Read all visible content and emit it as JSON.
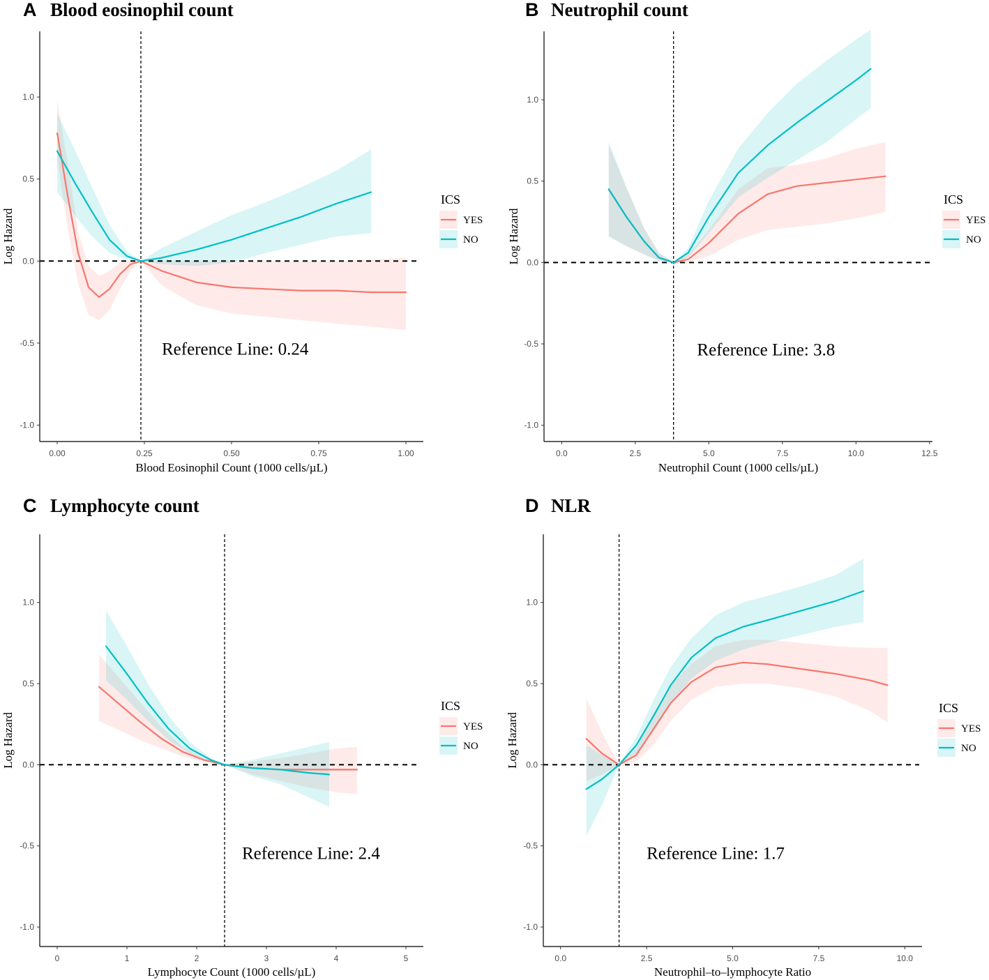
{
  "colors": {
    "yes": "#F8766D",
    "no": "#00BFC4",
    "yes_band": "#F8766D",
    "no_band": "#00BFC4",
    "axis": "#000000",
    "tick_text": "#4d4d4d"
  },
  "chart_data": [
    {
      "type": "line",
      "panel_letter": "A",
      "title": "Blood eosinophil count",
      "xlabel": "Blood Eosinophil Count (1000 cells/µL)",
      "ylabel": "Log Hazard",
      "xlim": [
        -0.05,
        1.05
      ],
      "ylim": [
        -1.1,
        1.4
      ],
      "xticks": [
        0.0,
        0.25,
        0.5,
        0.75,
        1.0
      ],
      "xtick_labels": [
        "0.00",
        "0.25",
        "0.50",
        "0.75",
        "1.00"
      ],
      "yticks": [
        1.0,
        0.5,
        0.0,
        -0.5,
        -1.0
      ],
      "ytick_labels": [
        "1.0",
        "0.5",
        "0.0",
        "-0.5",
        "-1.0"
      ],
      "reference_value": 0.24,
      "reference_label": "Reference Line: 0.24",
      "reference_label_pos": [
        0.3,
        -0.57
      ],
      "legend": {
        "title": "ICS",
        "position": "right",
        "entries": [
          "YES",
          "NO"
        ]
      },
      "series": [
        {
          "name": "YES",
          "x": [
            0.0,
            0.03,
            0.06,
            0.09,
            0.12,
            0.15,
            0.18,
            0.21,
            0.24,
            0.3,
            0.4,
            0.5,
            0.6,
            0.7,
            0.8,
            0.9,
            1.0
          ],
          "y": [
            0.78,
            0.4,
            0.05,
            -0.16,
            -0.22,
            -0.17,
            -0.08,
            -0.02,
            0.0,
            -0.06,
            -0.13,
            -0.16,
            -0.17,
            -0.18,
            -0.18,
            -0.19,
            -0.19
          ],
          "lower": [
            0.62,
            0.2,
            -0.14,
            -0.33,
            -0.36,
            -0.3,
            -0.17,
            -0.06,
            0.0,
            -0.15,
            -0.27,
            -0.32,
            -0.34,
            -0.36,
            -0.38,
            -0.4,
            -0.42
          ],
          "upper": [
            0.98,
            0.6,
            0.18,
            -0.03,
            -0.09,
            -0.06,
            -0.01,
            0.0,
            0.0,
            0.0,
            0.0,
            0.0,
            0.0,
            0.0,
            0.0,
            0.01,
            0.02
          ]
        },
        {
          "name": "NO",
          "x": [
            0.0,
            0.05,
            0.1,
            0.15,
            0.2,
            0.24,
            0.3,
            0.4,
            0.5,
            0.6,
            0.7,
            0.8,
            0.9
          ],
          "y": [
            0.67,
            0.48,
            0.3,
            0.13,
            0.03,
            0.0,
            0.02,
            0.07,
            0.13,
            0.2,
            0.27,
            0.35,
            0.42
          ],
          "lower": [
            0.42,
            0.28,
            0.15,
            0.05,
            0.01,
            0.0,
            -0.02,
            -0.03,
            -0.01,
            0.05,
            0.1,
            0.15,
            0.17
          ],
          "upper": [
            0.9,
            0.68,
            0.45,
            0.22,
            0.06,
            0.0,
            0.08,
            0.18,
            0.28,
            0.36,
            0.45,
            0.55,
            0.68
          ]
        }
      ]
    },
    {
      "type": "line",
      "panel_letter": "B",
      "title": "Neutrophil count",
      "xlabel": "Neutrophil Count (1000 cells/µL)",
      "ylabel": "Log Hazard",
      "xlim": [
        -0.6,
        12.6
      ],
      "ylim": [
        -1.1,
        1.42
      ],
      "xticks": [
        0.0,
        2.5,
        5.0,
        7.5,
        10.0,
        12.5
      ],
      "xtick_labels": [
        "0.0",
        "2.5",
        "5.0",
        "7.5",
        "10.0",
        "12.5"
      ],
      "yticks": [
        1.0,
        0.5,
        0.0,
        -0.5,
        -1.0
      ],
      "ytick_labels": [
        "1.0",
        "0.5",
        "0.0",
        "-0.5",
        "-1.0"
      ],
      "reference_value": 3.8,
      "reference_label": "Reference Line: 3.8",
      "reference_label_pos": [
        4.6,
        -0.57
      ],
      "legend": {
        "title": "ICS",
        "position": "right",
        "entries": [
          "YES",
          "NO"
        ]
      },
      "series": [
        {
          "name": "YES",
          "x": [
            1.6,
            2.2,
            2.8,
            3.3,
            3.8,
            4.3,
            5.0,
            6.0,
            7.0,
            8.0,
            9.0,
            10.0,
            11.0
          ],
          "y": [
            0.45,
            0.28,
            0.13,
            0.03,
            0.0,
            0.02,
            0.12,
            0.3,
            0.42,
            0.47,
            0.49,
            0.51,
            0.53
          ],
          "lower": [
            0.16,
            0.1,
            0.05,
            0.01,
            0.0,
            0.0,
            0.04,
            0.14,
            0.2,
            0.22,
            0.24,
            0.27,
            0.31
          ],
          "upper": [
            0.72,
            0.46,
            0.21,
            0.06,
            0.0,
            0.05,
            0.2,
            0.45,
            0.58,
            0.6,
            0.64,
            0.7,
            0.74
          ]
        },
        {
          "name": "NO",
          "x": [
            1.6,
            2.2,
            2.8,
            3.3,
            3.8,
            4.3,
            5.0,
            6.0,
            7.0,
            8.0,
            9.0,
            10.0,
            10.5
          ],
          "y": [
            0.45,
            0.28,
            0.13,
            0.03,
            0.0,
            0.06,
            0.28,
            0.55,
            0.72,
            0.86,
            0.99,
            1.12,
            1.19
          ],
          "lower": [
            0.16,
            0.1,
            0.05,
            0.01,
            0.0,
            0.03,
            0.18,
            0.4,
            0.52,
            0.63,
            0.74,
            0.88,
            0.95
          ],
          "upper": [
            0.74,
            0.46,
            0.21,
            0.06,
            0.0,
            0.09,
            0.38,
            0.7,
            0.92,
            1.1,
            1.24,
            1.37,
            1.43
          ]
        }
      ]
    },
    {
      "type": "line",
      "panel_letter": "C",
      "title": "Lymphocyte count",
      "xlabel": "Lymphocyte Count (1000 cells/µL)",
      "ylabel": "Log Hazard",
      "xlim": [
        -0.25,
        5.25
      ],
      "ylim": [
        -1.12,
        1.42
      ],
      "xticks": [
        0,
        1,
        2,
        3,
        4,
        5
      ],
      "xtick_labels": [
        "0",
        "1",
        "2",
        "3",
        "4",
        "5"
      ],
      "yticks": [
        1.0,
        0.5,
        0.0,
        -0.5,
        -1.0
      ],
      "ytick_labels": [
        "1.0",
        "0.5",
        "0.0",
        "-0.5",
        "-1.0"
      ],
      "reference_value": 2.4,
      "reference_label": "Reference Line: 2.4",
      "reference_label_pos": [
        2.65,
        -0.58
      ],
      "legend": {
        "title": "ICS",
        "position": "right",
        "entries": [
          "YES",
          "NO"
        ]
      },
      "series": [
        {
          "name": "YES",
          "x": [
            0.6,
            0.9,
            1.2,
            1.5,
            1.8,
            2.1,
            2.4,
            2.8,
            3.2,
            3.6,
            4.0,
            4.3
          ],
          "y": [
            0.48,
            0.37,
            0.26,
            0.16,
            0.08,
            0.03,
            0.0,
            -0.02,
            -0.03,
            -0.03,
            -0.03,
            -0.03
          ],
          "lower": [
            0.27,
            0.21,
            0.15,
            0.1,
            0.05,
            0.02,
            0.0,
            -0.06,
            -0.1,
            -0.14,
            -0.17,
            -0.18
          ],
          "upper": [
            0.68,
            0.53,
            0.38,
            0.23,
            0.11,
            0.04,
            0.0,
            0.02,
            0.04,
            0.07,
            0.1,
            0.11
          ]
        },
        {
          "name": "NO",
          "x": [
            0.7,
            1.0,
            1.3,
            1.6,
            1.9,
            2.2,
            2.4,
            2.8,
            3.2,
            3.6,
            3.9
          ],
          "y": [
            0.73,
            0.56,
            0.38,
            0.22,
            0.1,
            0.03,
            0.0,
            -0.02,
            -0.03,
            -0.05,
            -0.06
          ],
          "lower": [
            0.52,
            0.4,
            0.27,
            0.15,
            0.07,
            0.02,
            0.0,
            -0.07,
            -0.12,
            -0.2,
            -0.26
          ],
          "upper": [
            0.95,
            0.73,
            0.5,
            0.3,
            0.14,
            0.04,
            0.0,
            0.03,
            0.07,
            0.11,
            0.14
          ]
        }
      ]
    },
    {
      "type": "line",
      "panel_letter": "D",
      "title": "NLR",
      "xlabel": "Neutrophil–to–lymphocyte Ratio",
      "ylabel": "Log Hazard",
      "xlim": [
        -0.5,
        10.5
      ],
      "ylim": [
        -1.12,
        1.42
      ],
      "xticks": [
        0.0,
        2.5,
        5.0,
        7.5,
        10.0
      ],
      "xtick_labels": [
        "0.0",
        "2.5",
        "5.0",
        "7.5",
        "10.0"
      ],
      "yticks": [
        1.0,
        0.5,
        0.0,
        -0.5,
        -1.0
      ],
      "ytick_labels": [
        "1.0",
        "0.5",
        "0.0",
        "-0.5",
        "-1.0"
      ],
      "reference_value": 1.7,
      "reference_label": "Reference Line: 1.7",
      "reference_label_pos": [
        2.5,
        -0.58
      ],
      "legend": {
        "title": "ICS",
        "position": "right",
        "entries": [
          "YES",
          "NO"
        ]
      },
      "series": [
        {
          "name": "YES",
          "x": [
            0.75,
            1.2,
            1.7,
            2.2,
            2.7,
            3.2,
            3.8,
            4.5,
            5.3,
            6.0,
            7.0,
            8.0,
            9.0,
            9.5
          ],
          "y": [
            0.16,
            0.07,
            0.0,
            0.06,
            0.22,
            0.38,
            0.51,
            0.6,
            0.63,
            0.62,
            0.59,
            0.56,
            0.52,
            0.49
          ],
          "lower": [
            -0.1,
            -0.06,
            0.0,
            0.02,
            0.12,
            0.27,
            0.4,
            0.48,
            0.5,
            0.5,
            0.47,
            0.42,
            0.33,
            0.26
          ],
          "upper": [
            0.41,
            0.2,
            0.0,
            0.1,
            0.32,
            0.49,
            0.62,
            0.73,
            0.77,
            0.77,
            0.75,
            0.73,
            0.72,
            0.72
          ]
        },
        {
          "name": "NO",
          "x": [
            0.75,
            1.2,
            1.7,
            2.2,
            2.7,
            3.2,
            3.8,
            4.5,
            5.3,
            6.0,
            7.0,
            8.0,
            8.8
          ],
          "y": [
            -0.15,
            -0.09,
            0.0,
            0.12,
            0.3,
            0.49,
            0.66,
            0.78,
            0.85,
            0.89,
            0.95,
            1.01,
            1.07
          ],
          "lower": [
            -0.44,
            -0.25,
            0.0,
            0.07,
            0.2,
            0.37,
            0.53,
            0.64,
            0.71,
            0.75,
            0.8,
            0.85,
            0.88
          ],
          "upper": [
            0.12,
            0.06,
            0.0,
            0.17,
            0.4,
            0.6,
            0.78,
            0.92,
            1.0,
            1.04,
            1.1,
            1.17,
            1.27
          ]
        }
      ]
    }
  ]
}
